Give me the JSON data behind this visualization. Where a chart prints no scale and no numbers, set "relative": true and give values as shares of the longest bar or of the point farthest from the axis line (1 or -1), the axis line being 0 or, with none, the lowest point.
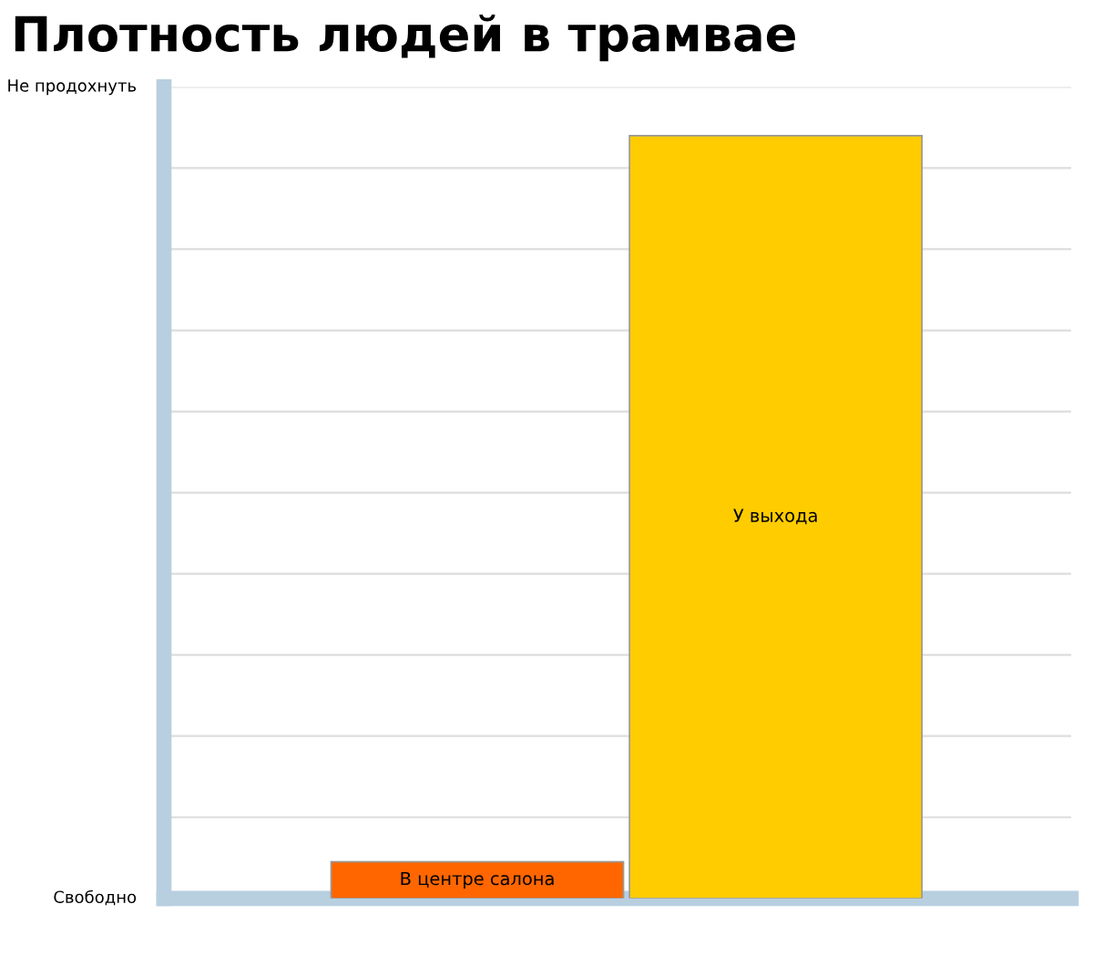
{
  "chart_data": {
    "type": "bar",
    "title": "Плотность людей в трамвае",
    "categories": [
      "В центре салона",
      "У выхода"
    ],
    "values": [
      0.048,
      1
    ],
    "colors": [
      "#ff6600",
      "#ffcc00"
    ],
    "relative": true,
    "annotations": [
      "Свободно",
      "Не продохнуть"
    ],
    "grid": "y",
    "tick_labels": false
  }
}
